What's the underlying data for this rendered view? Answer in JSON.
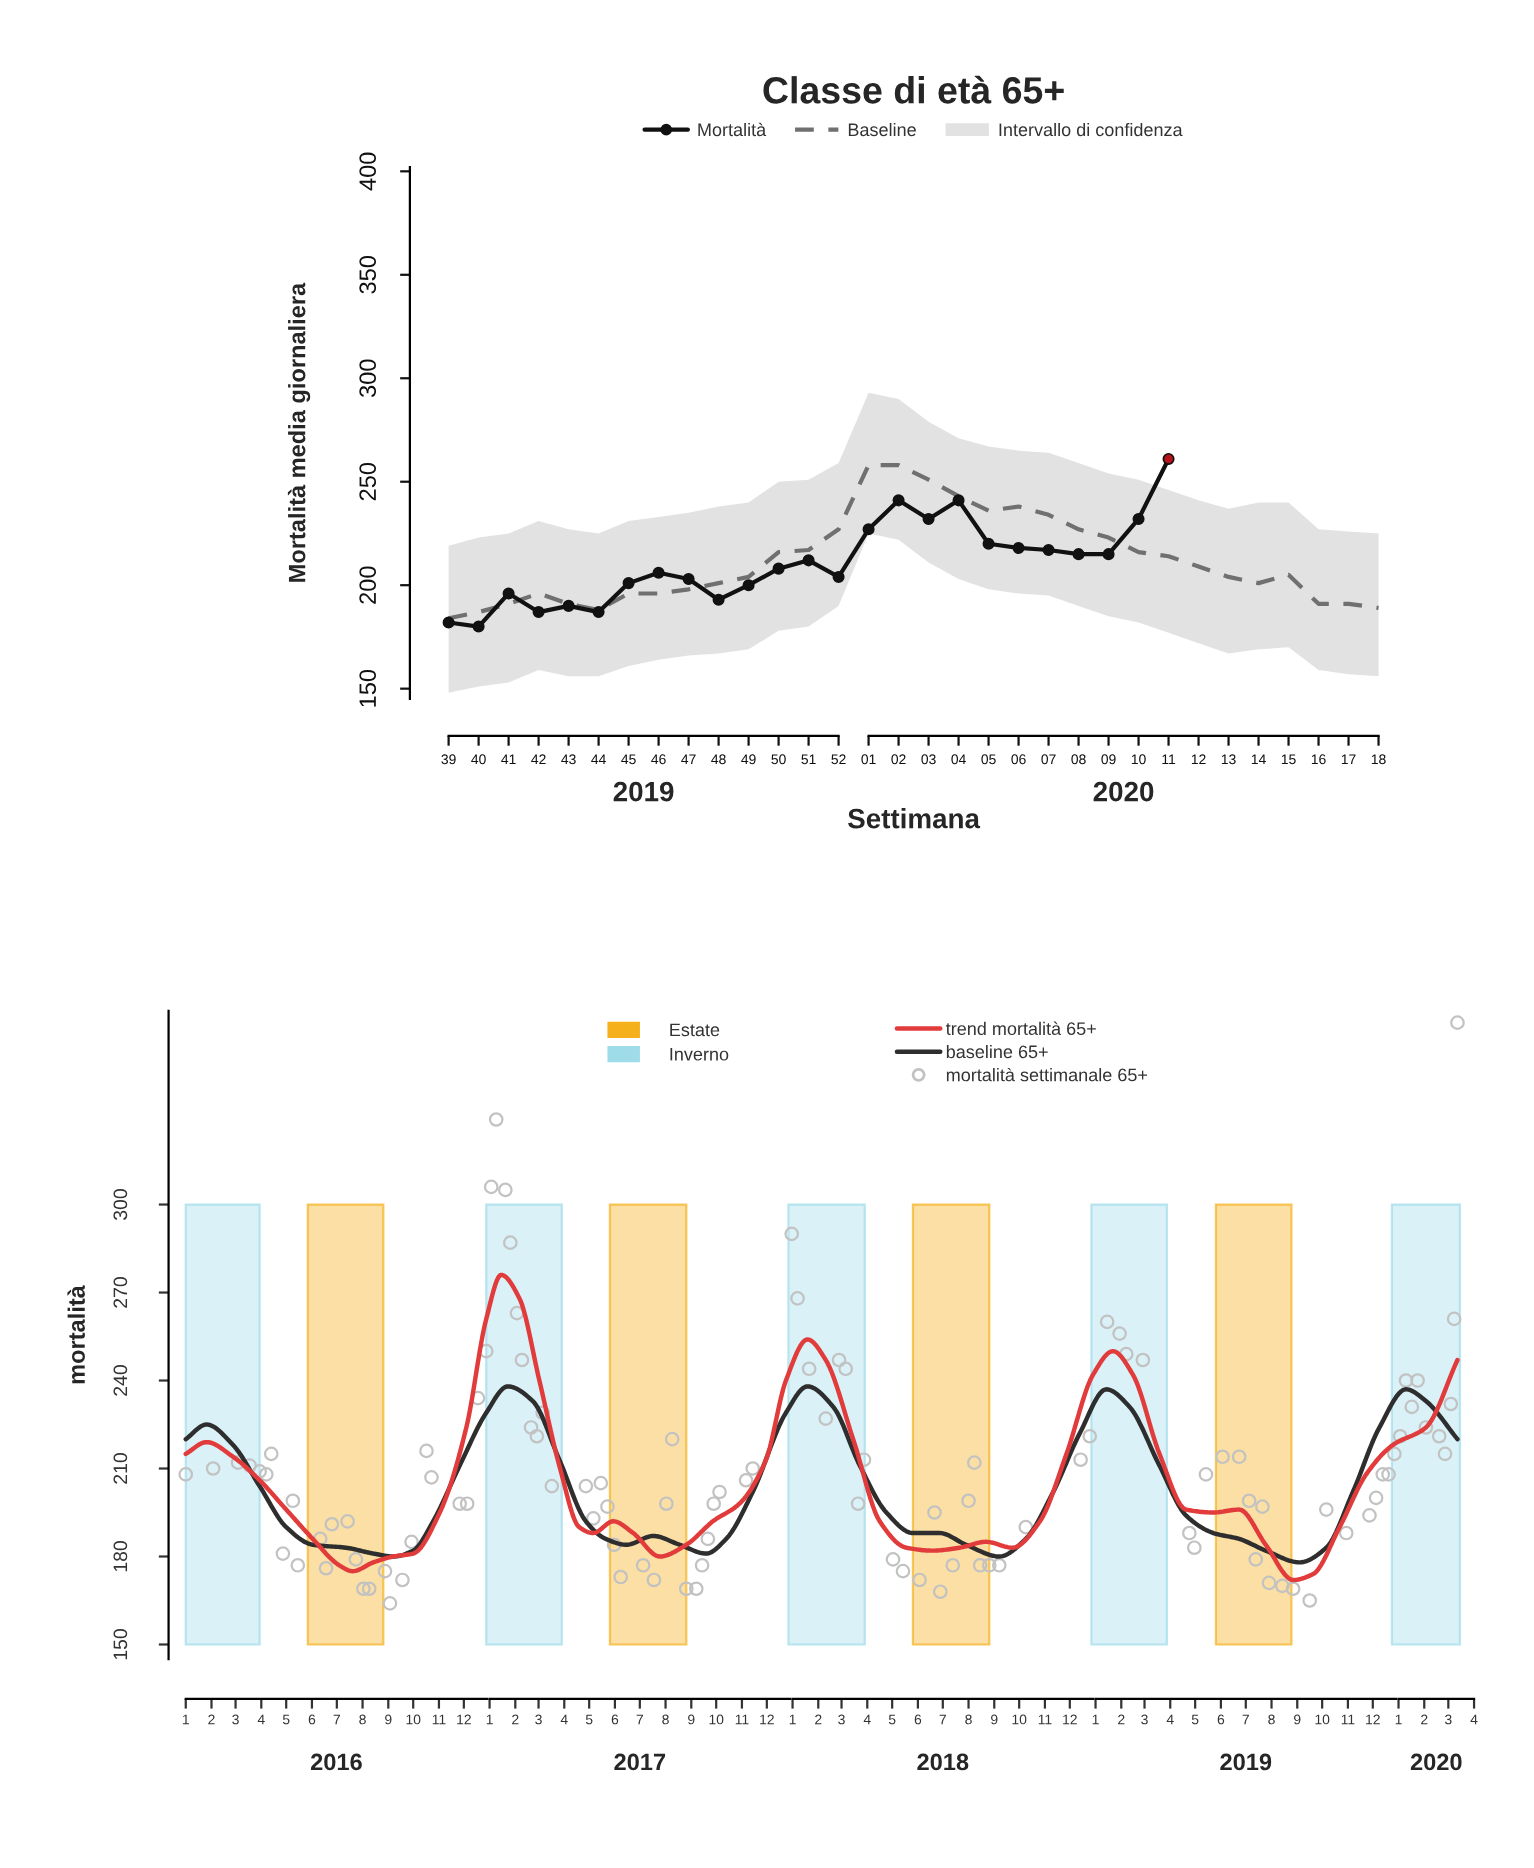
{
  "chart_data": [
    {
      "type": "line",
      "title": "Classe di età 65+",
      "xlabel": "Settimana",
      "ylabel": "Mortalità media giornaliera",
      "categories": [
        "39",
        "40",
        "41",
        "42",
        "43",
        "44",
        "45",
        "46",
        "47",
        "48",
        "49",
        "50",
        "51",
        "52",
        "01",
        "02",
        "03",
        "04",
        "05",
        "06",
        "07",
        "08",
        "09",
        "10",
        "11",
        "12",
        "13",
        "14",
        "15",
        "16",
        "17",
        "18"
      ],
      "series": [
        {
          "name": "Mortalità",
          "color": "#111111",
          "marker": "circle",
          "values": [
            182,
            180,
            196,
            187,
            190,
            187,
            201,
            206,
            203,
            193,
            200,
            208,
            212,
            204,
            227,
            241,
            232,
            241,
            220,
            218,
            217,
            215,
            215,
            232,
            261,
            null,
            null,
            null,
            null,
            null,
            null,
            null
          ],
          "colors": [
            "#111111",
            "#111111",
            "#111111",
            "#111111",
            "#111111",
            "#111111",
            "#111111",
            "#111111",
            "#111111",
            "#111111",
            "#111111",
            "#111111",
            "#111111",
            "#111111",
            "#111111",
            "#111111",
            "#111111",
            "#111111",
            "#111111",
            "#111111",
            "#111111",
            "#111111",
            "#111111",
            "#111111",
            "#b5121b",
            null,
            null,
            null,
            null,
            null,
            null,
            null
          ]
        },
        {
          "name": "Baseline",
          "color": "#707070",
          "line_style": "dashed",
          "values": [
            184,
            187,
            191,
            196,
            191,
            188,
            196,
            196,
            198,
            201,
            204,
            216,
            217,
            227,
            258,
            258,
            251,
            243,
            236,
            238,
            234,
            227,
            223,
            216,
            214,
            209,
            204,
            201,
            205,
            191,
            191,
            189
          ],
          "lower": [
            148,
            151,
            153,
            159,
            156,
            156,
            161,
            164,
            166,
            167,
            169,
            178,
            180,
            190,
            225,
            222,
            211,
            203,
            198,
            196,
            195,
            190,
            185,
            182,
            177,
            172,
            167,
            169,
            170,
            159,
            157,
            156
          ],
          "upper": [
            219,
            223,
            225,
            231,
            227,
            225,
            231,
            233,
            235,
            238,
            240,
            250,
            251,
            259,
            293,
            290,
            279,
            271,
            267,
            265,
            264,
            259,
            254,
            251,
            246,
            241,
            237,
            240,
            240,
            227,
            226,
            225
          ]
        },
        {
          "name": "Intervallo di confidenza",
          "type": "area",
          "color": "#e2e2e2",
          "values": [
            null,
            null,
            null,
            null,
            null,
            null,
            null,
            null,
            null,
            null,
            null,
            null,
            null,
            null,
            null,
            null,
            null,
            null,
            null,
            null,
            null,
            null,
            null,
            null,
            null,
            null,
            null,
            null,
            null,
            null,
            null,
            null
          ]
        }
      ],
      "ylim": [
        145,
        402
      ],
      "yticks": [
        150,
        200,
        250,
        300,
        350,
        400
      ],
      "legend": "top",
      "annotations": [
        "2019",
        "2020"
      ]
    },
    {
      "type": "line",
      "ylabel": "mortalità",
      "series": [
        {
          "name": "trend mortalità 65+",
          "color": "#e23b3b",
          "x": [
            "2016-01-01",
            "2016-01-26",
            "2016-02-27",
            "2016-03-30",
            "2016-05-01",
            "2016-06-02",
            "2016-07-04",
            "2016-07-20",
            "2016-08-14",
            "2016-09-07",
            "2016-10-01",
            "2016-11-02",
            "2016-12-04",
            "2016-12-28",
            "2017-01-15",
            "2017-02-06",
            "2017-03-02",
            "2017-03-26",
            "2017-04-19",
            "2017-05-06",
            "2017-05-30",
            "2017-06-23",
            "2017-07-25",
            "2017-08-26",
            "2017-09-27",
            "2017-10-29",
            "2017-11-30",
            "2017-12-24",
            "2018-01-19",
            "2018-02-10",
            "2018-03-15",
            "2018-04-16",
            "2018-05-18",
            "2018-06-19",
            "2018-07-21",
            "2018-08-22",
            "2018-09-23",
            "2018-10-26",
            "2018-11-27",
            "2018-12-29",
            "2019-01-22",
            "2019-02-15",
            "2019-03-19",
            "2019-04-20",
            "2019-05-23",
            "2019-06-23",
            "2019-07-25",
            "2019-08-27",
            "2019-09-20",
            "2019-10-22",
            "2019-11-23",
            "2019-12-25",
            "2020-02-03",
            "2020-03-12"
          ],
          "values": [
            215,
            219,
            214,
            206,
            196,
            186,
            177,
            175,
            178,
            180,
            181,
            195,
            224,
            261,
            276,
            268,
            240,
            211,
            190,
            188,
            192,
            188,
            180,
            184,
            192,
            198,
            213,
            240,
            254,
            247,
            220,
            192,
            183,
            182,
            183,
            185,
            183,
            192,
            215,
            242,
            250,
            242,
            215,
            196,
            195,
            196,
            184,
            172,
            174,
            190,
            208,
            218,
            224,
            247
          ]
        },
        {
          "name": "baseline 65+",
          "color": "#2e2e2e",
          "x": [
            "2016-01-01",
            "2016-01-26",
            "2016-02-27",
            "2016-03-30",
            "2016-05-01",
            "2016-06-02",
            "2016-07-12",
            "2016-08-14",
            "2016-09-07",
            "2016-10-01",
            "2016-10-25",
            "2016-11-26",
            "2016-12-28",
            "2017-01-23",
            "2017-02-22",
            "2017-03-26",
            "2017-04-27",
            "2017-05-21",
            "2017-06-15",
            "2017-07-17",
            "2017-08-18",
            "2017-09-19",
            "2017-10-13",
            "2017-11-14",
            "2017-12-24",
            "2018-01-19",
            "2018-02-19",
            "2018-03-23",
            "2018-04-24",
            "2018-05-26",
            "2018-06-27",
            "2018-07-29",
            "2018-09-07",
            "2018-10-09",
            "2018-11-11",
            "2018-12-13",
            "2019-01-14",
            "2019-02-11",
            "2019-03-19",
            "2019-04-20",
            "2019-05-23",
            "2019-06-23",
            "2019-07-25",
            "2019-09-04",
            "2019-10-06",
            "2019-11-07",
            "2019-12-09",
            "2020-01-10",
            "2020-02-03",
            "2020-03-12"
          ],
          "values": [
            220,
            225,
            218,
            204,
            190,
            184,
            183,
            181,
            180,
            182,
            192,
            211,
            229,
            238,
            233,
            213,
            192,
            186,
            184,
            187,
            184,
            181,
            186,
            202,
            229,
            238,
            231,
            211,
            195,
            188,
            188,
            184,
            180,
            186,
            202,
            222,
            237,
            231,
            211,
            194,
            188,
            186,
            182,
            178,
            183,
            202,
            224,
            237,
            233,
            220
          ]
        },
        {
          "name": "mortalità settimanale 65+",
          "type": "scatter",
          "color": "#c2c2c2",
          "marker": "circle",
          "x": [
            "2016-01-01",
            "2016-02-03",
            "2016-03-04",
            "2016-03-18",
            "2016-03-30",
            "2016-04-07",
            "2016-04-13",
            "2016-04-27",
            "2016-05-09",
            "2016-05-15",
            "2016-06-11",
            "2016-06-18",
            "2016-06-25",
            "2016-07-14",
            "2016-07-24",
            "2016-08-02",
            "2016-08-09",
            "2016-08-28",
            "2016-09-03",
            "2016-09-18",
            "2016-09-29",
            "2016-10-17",
            "2016-10-23",
            "2016-11-26",
            "2016-12-05",
            "2016-12-18",
            "2016-12-28",
            "2017-01-03",
            "2017-01-09",
            "2017-01-20",
            "2017-01-26",
            "2017-02-03",
            "2017-02-09",
            "2017-02-20",
            "2017-02-27",
            "2017-03-06",
            "2017-03-17",
            "2017-04-27",
            "2017-05-06",
            "2017-05-15",
            "2017-05-23",
            "2017-05-31",
            "2017-06-08",
            "2017-07-05",
            "2017-07-18",
            "2017-08-02",
            "2017-08-09",
            "2017-08-26",
            "2017-09-07",
            "2017-09-14",
            "2017-09-21",
            "2017-09-28",
            "2017-10-05",
            "2017-11-06",
            "2017-11-14",
            "2017-12-31",
            "2018-01-07",
            "2018-01-21",
            "2018-02-10",
            "2018-02-26",
            "2018-03-06",
            "2018-03-21",
            "2018-03-28",
            "2018-05-02",
            "2018-05-14",
            "2018-06-03",
            "2018-06-21",
            "2018-06-28",
            "2018-07-13",
            "2018-08-01",
            "2018-08-08",
            "2018-08-15",
            "2018-08-26",
            "2018-09-07",
            "2018-10-09",
            "2018-12-14",
            "2018-12-25",
            "2019-01-15",
            "2019-01-30",
            "2019-02-07",
            "2019-02-27",
            "2019-04-24",
            "2019-04-30",
            "2019-05-14",
            "2019-06-03",
            "2019-06-23",
            "2019-07-05",
            "2019-07-13",
            "2019-07-21",
            "2019-07-29",
            "2019-08-14",
            "2019-08-27",
            "2019-09-16",
            "2019-10-06",
            "2019-10-30",
            "2019-11-27",
            "2019-12-05",
            "2019-12-13",
            "2019-12-20",
            "2019-12-27",
            "2020-01-03",
            "2020-01-10",
            "2020-01-17",
            "2020-01-24",
            "2020-02-03",
            "2020-02-19",
            "2020-02-26",
            "2020-03-04",
            "2020-03-08",
            "2020-03-12"
          ],
          "values": [
            208,
            210,
            212,
            211,
            209,
            208,
            215,
            181,
            199,
            177,
            186,
            176,
            191,
            192,
            179,
            169,
            169,
            175,
            164,
            172,
            185,
            216,
            207,
            198,
            198,
            234,
            250,
            306,
            329,
            305,
            287,
            263,
            247,
            224,
            221,
            229,
            204,
            204,
            193,
            205,
            197,
            184,
            173,
            177,
            172,
            198,
            220,
            169,
            169,
            177,
            186,
            198,
            202,
            206,
            210,
            290,
            268,
            244,
            227,
            247,
            244,
            198,
            213,
            179,
            175,
            172,
            195,
            168,
            177,
            199,
            212,
            177,
            177,
            177,
            190,
            213,
            221,
            260,
            256,
            249,
            247,
            188,
            183,
            208,
            214,
            214,
            199,
            179,
            197,
            171,
            170,
            169,
            165,
            196,
            188,
            194,
            200,
            208,
            208,
            215,
            221,
            240,
            231,
            240,
            224,
            221,
            215,
            232,
            261,
            362
          ]
        }
      ],
      "bands": [
        {
          "axis": "x",
          "from": "2016-05-27",
          "to": "2016-08-26",
          "label": "Estate",
          "color": "#f5b01c"
        },
        {
          "axis": "x",
          "from": "2016-01-01",
          "to": "2016-03-30",
          "label": "Inverno",
          "color": "#9fdcea"
        },
        {
          "axis": "x",
          "from": "2016-12-28",
          "to": "2017-03-29",
          "color": "#9fdcea"
        },
        {
          "axis": "x",
          "from": "2017-05-26",
          "to": "2017-08-26",
          "color": "#f5b01c"
        },
        {
          "axis": "x",
          "from": "2017-12-27",
          "to": "2018-03-29",
          "color": "#9fdcea"
        },
        {
          "axis": "x",
          "from": "2018-05-26",
          "to": "2018-08-26",
          "color": "#f5b01c"
        },
        {
          "axis": "x",
          "from": "2018-12-27",
          "to": "2019-03-28",
          "color": "#9fdcea"
        },
        {
          "axis": "x",
          "from": "2019-05-26",
          "to": "2019-08-25",
          "color": "#f5b01c"
        },
        {
          "axis": "x",
          "from": "2019-12-24",
          "to": "2020-03-15",
          "color": "#9fdcea"
        }
      ],
      "xlim": [
        "2015-12-20",
        "2020-04-10"
      ],
      "xticks": [
        {
          "value": "2016-01",
          "label": "1"
        },
        {
          "value": "2016-02",
          "label": "2"
        },
        {
          "value": "2016-03",
          "label": "3"
        },
        {
          "value": "2016-04",
          "label": "4"
        },
        {
          "value": "2016-05",
          "label": "5"
        },
        {
          "value": "2016-06",
          "label": "6"
        },
        {
          "value": "2016-07",
          "label": "7"
        },
        {
          "value": "2016-08",
          "label": "8"
        },
        {
          "value": "2016-09",
          "label": "9"
        },
        {
          "value": "2016-10",
          "label": "10"
        },
        {
          "value": "2016-11",
          "label": "11"
        },
        {
          "value": "2016-12",
          "label": "12"
        },
        {
          "value": "2017-01",
          "label": "1"
        },
        {
          "value": "2017-02",
          "label": "2"
        },
        {
          "value": "2017-03",
          "label": "3"
        },
        {
          "value": "2017-04",
          "label": "4"
        },
        {
          "value": "2017-05",
          "label": "5"
        },
        {
          "value": "2017-06",
          "label": "6"
        },
        {
          "value": "2017-07",
          "label": "7"
        },
        {
          "value": "2017-08",
          "label": "8"
        },
        {
          "value": "2017-09",
          "label": "9"
        },
        {
          "value": "2017-10",
          "label": "10"
        },
        {
          "value": "2017-11",
          "label": "11"
        },
        {
          "value": "2017-12",
          "label": "12"
        },
        {
          "value": "2018-01",
          "label": "1"
        },
        {
          "value": "2018-02",
          "label": "2"
        },
        {
          "value": "2018-03",
          "label": "3"
        },
        {
          "value": "2018-04",
          "label": "4"
        },
        {
          "value": "2018-05",
          "label": "5"
        },
        {
          "value": "2018-06",
          "label": "6"
        },
        {
          "value": "2018-07",
          "label": "7"
        },
        {
          "value": "2018-08",
          "label": "8"
        },
        {
          "value": "2018-09",
          "label": "9"
        },
        {
          "value": "2018-10",
          "label": "10"
        },
        {
          "value": "2018-11",
          "label": "11"
        },
        {
          "value": "2018-12",
          "label": "12"
        },
        {
          "value": "2019-01",
          "label": "1"
        },
        {
          "value": "2019-02",
          "label": "2"
        },
        {
          "value": "2019-03",
          "label": "3"
        },
        {
          "value": "2019-04",
          "label": "4"
        },
        {
          "value": "2019-05",
          "label": "5"
        },
        {
          "value": "2019-06",
          "label": "6"
        },
        {
          "value": "2019-07",
          "label": "7"
        },
        {
          "value": "2019-08",
          "label": "8"
        },
        {
          "value": "2019-09",
          "label": "9"
        },
        {
          "value": "2019-10",
          "label": "10"
        },
        {
          "value": "2019-11",
          "label": "11"
        },
        {
          "value": "2019-12",
          "label": "12"
        },
        {
          "value": "2020-01",
          "label": "1"
        },
        {
          "value": "2020-02",
          "label": "2"
        },
        {
          "value": "2020-03",
          "label": "3"
        },
        {
          "value": "2020-04",
          "label": "4"
        }
      ],
      "ylim": [
        145,
        366
      ],
      "yticks": [
        150,
        180,
        210,
        240,
        270,
        300
      ],
      "legend": "top",
      "annotations": [
        "2016",
        "2017",
        "2018",
        "2019",
        "2020"
      ]
    }
  ]
}
